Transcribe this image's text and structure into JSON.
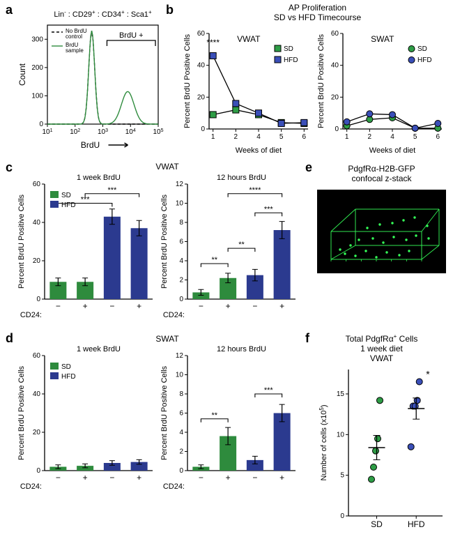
{
  "colors": {
    "sd_green": "#2e8b3d",
    "hfd_blue": "#2b3a8f",
    "hfd_blue_dot": "#3a4fb8",
    "sd_green_dot": "#2e9d46",
    "black": "#000000",
    "gray": "#666666",
    "bg": "#ffffff",
    "confocal_bg": "#000000",
    "gfp": "#35ff58"
  },
  "panel_a": {
    "label": "a",
    "title_parts": [
      "Lin",
      "-",
      " : CD29",
      "+",
      " : CD34",
      "+",
      " : Sca1",
      "+"
    ],
    "ylabel": "Count",
    "xlabel": "BrdU",
    "legend": {
      "no_brdu": "No BrdU\ncontrol",
      "brdu_sample": "BrdU\nsample"
    },
    "gate_label": "BrdU +",
    "yticks": [
      0,
      100,
      200,
      300
    ],
    "xticks": [
      "10^1",
      "10^2",
      "10^3",
      "10^4",
      "10^5"
    ],
    "main_peak_x": 2.6,
    "main_peak_h": 330,
    "second_peak_x": 3.9,
    "second_peak_h": 115
  },
  "panel_b": {
    "label": "b",
    "supertitle": "AP Proliferation\nSD vs HFD Timecourse",
    "ylabel": "Percent BrdU Positive Cells",
    "xlabel": "Weeks of diet",
    "yticks": [
      0,
      20,
      40,
      60
    ],
    "xticks": [
      1,
      2,
      4,
      5,
      6
    ],
    "sig": "****",
    "legend": {
      "sd": "SD",
      "hfd": "HFD"
    },
    "vwat": {
      "title": "VWAT",
      "sd": [
        9,
        12,
        9,
        4,
        3.5
      ],
      "hfd": [
        46,
        16,
        10,
        3.5,
        4
      ]
    },
    "swat": {
      "title": "SWAT",
      "sd": [
        2,
        6,
        7,
        0.5,
        0.5
      ],
      "hfd": [
        4.5,
        9.5,
        9,
        0.5,
        3.5
      ]
    }
  },
  "panel_c": {
    "label": "c",
    "title": "VWAT",
    "ylabel": "Percent BrdU Positive Cells",
    "cd24_label": "CD24:",
    "left": {
      "title": "1 week BrdU",
      "yticks": [
        0,
        20,
        40,
        60
      ],
      "groups": [
        "−",
        "+",
        "−",
        "+"
      ],
      "values": [
        9,
        9,
        43,
        37
      ],
      "errors": [
        2,
        2,
        4,
        4
      ],
      "colors": [
        "sd_green",
        "sd_green",
        "hfd_blue",
        "hfd_blue"
      ],
      "sig": [
        {
          "from": 0,
          "to": 2,
          "label": "***",
          "y": 50
        },
        {
          "from": 1,
          "to": 3,
          "label": "***",
          "y": 55
        }
      ]
    },
    "right": {
      "title": "12 hours BrdU",
      "yticks": [
        0,
        2,
        4,
        6,
        8,
        10,
        12
      ],
      "groups": [
        "−",
        "+",
        "−",
        "+"
      ],
      "values": [
        0.7,
        2.2,
        2.5,
        7.2
      ],
      "errors": [
        0.3,
        0.5,
        0.6,
        0.9
      ],
      "colors": [
        "sd_green",
        "sd_green",
        "hfd_blue",
        "hfd_blue"
      ],
      "sig": [
        {
          "from": 0,
          "to": 1,
          "label": "**",
          "y": 3.7
        },
        {
          "from": 1,
          "to": 2,
          "label": "**",
          "y": 5.3
        },
        {
          "from": 2,
          "to": 3,
          "label": "***",
          "y": 9.0
        },
        {
          "from": 1,
          "to": 3,
          "label": "****",
          "y": 11.0
        }
      ]
    },
    "legend": {
      "sd": "SD",
      "hfd": "HFD"
    }
  },
  "panel_d": {
    "label": "d",
    "title": "SWAT",
    "ylabel": "Percent BrdU Positive Cells",
    "cd24_label": "CD24:",
    "left": {
      "title": "1 week BrdU",
      "yticks": [
        0,
        20,
        40,
        60
      ],
      "groups": [
        "−",
        "+",
        "−",
        "+"
      ],
      "values": [
        2,
        2.5,
        4,
        4.5
      ],
      "errors": [
        1,
        1,
        1.2,
        1.2
      ],
      "colors": [
        "sd_green",
        "sd_green",
        "hfd_blue",
        "hfd_blue"
      ],
      "sig": []
    },
    "right": {
      "title": "12 hours BrdU",
      "yticks": [
        0,
        2,
        4,
        6,
        8,
        10,
        12
      ],
      "groups": [
        "−",
        "+",
        "−",
        "+"
      ],
      "values": [
        0.4,
        3.6,
        1.1,
        6.0
      ],
      "errors": [
        0.2,
        0.9,
        0.4,
        0.9
      ],
      "colors": [
        "sd_green",
        "sd_green",
        "hfd_blue",
        "hfd_blue"
      ],
      "sig": [
        {
          "from": 0,
          "to": 1,
          "label": "**",
          "y": 5.4
        },
        {
          "from": 2,
          "to": 3,
          "label": "***",
          "y": 8.0
        }
      ]
    },
    "legend": {
      "sd": "SD",
      "hfd": "HFD"
    }
  },
  "panel_e": {
    "label": "e",
    "title": "PdgfRα-H2B-GFP\nconfocal z-stack"
  },
  "panel_f": {
    "label": "f",
    "title": "Total PdgfRα+ Cells\n1 week diet\nVWAT",
    "ylabel": "Number of cells (x10^5)",
    "yticks": [
      0,
      5,
      10,
      15
    ],
    "xcats": [
      "SD",
      "HFD"
    ],
    "sd_points": [
      4.5,
      6,
      8,
      9.5,
      14.2
    ],
    "hfd_points": [
      8.5,
      13.5,
      13.5,
      14.2,
      16.5
    ],
    "sd_mean": 8.4,
    "sd_err": 1.5,
    "hfd_mean": 13.2,
    "hfd_err": 1.3,
    "sig": "*"
  }
}
